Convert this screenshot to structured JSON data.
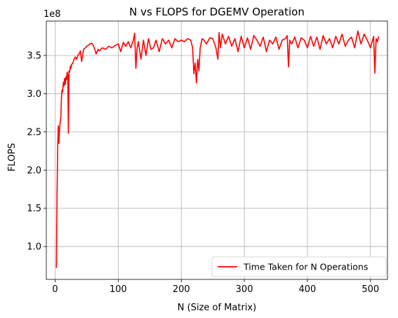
{
  "chart_data": {
    "type": "line",
    "title": "N vs FLOPS for DGEMV Operation",
    "xlabel": "N (Size of Matrix)",
    "ylabel": "FLOPS",
    "y_offset_text": "1e8",
    "xlim": [
      -14,
      527
    ],
    "ylim": [
      57000000.0,
      395000000.0
    ],
    "xticks": [
      0,
      100,
      200,
      300,
      400,
      500
    ],
    "xtick_labels": [
      "0",
      "100",
      "200",
      "300",
      "400",
      "500"
    ],
    "yticks": [
      100000000.0,
      150000000.0,
      200000000.0,
      250000000.0,
      300000000.0,
      350000000.0
    ],
    "ytick_labels": [
      "1.0",
      "1.5",
      "2.0",
      "2.5",
      "3.0",
      "3.5"
    ],
    "grid": true,
    "legend_position": "lower-right",
    "series": [
      {
        "name": "Time Taken for N Operations",
        "color": "#ff0000",
        "x": [
          2,
          3,
          4,
          5,
          6,
          7,
          8,
          9,
          10,
          11,
          12,
          13,
          14,
          15,
          16,
          17,
          18,
          19,
          20,
          21,
          22,
          23,
          24,
          25,
          26,
          28,
          30,
          32,
          34,
          36,
          38,
          40,
          42,
          45,
          48,
          50,
          52,
          55,
          58,
          60,
          62,
          65,
          68,
          70,
          75,
          80,
          85,
          90,
          95,
          100,
          104,
          108,
          112,
          116,
          120,
          124,
          126,
          128,
          130,
          132,
          136,
          140,
          144,
          148,
          152,
          156,
          160,
          165,
          170,
          175,
          180,
          185,
          190,
          195,
          200,
          205,
          210,
          215,
          218,
          220,
          222,
          224,
          226,
          228,
          230,
          233,
          236,
          240,
          245,
          250,
          255,
          258,
          260,
          262,
          265,
          270,
          275,
          280,
          285,
          290,
          295,
          300,
          305,
          310,
          315,
          320,
          325,
          330,
          335,
          340,
          345,
          350,
          355,
          360,
          365,
          368,
          370,
          372,
          375,
          380,
          385,
          390,
          395,
          400,
          405,
          410,
          415,
          420,
          425,
          430,
          435,
          440,
          445,
          450,
          455,
          460,
          465,
          470,
          475,
          480,
          485,
          490,
          495,
          500,
          505,
          507,
          509,
          511,
          513
        ],
        "y": [
          72000000.0,
          170000000.0,
          230000000.0,
          258000000.0,
          235000000.0,
          255000000.0,
          262000000.0,
          270000000.0,
          295000000.0,
          305000000.0,
          302000000.0,
          315000000.0,
          310000000.0,
          320000000.0,
          312000000.0,
          322000000.0,
          318000000.0,
          328000000.0,
          325000000.0,
          248000000.0,
          330000000.0,
          328000000.0,
          336000000.0,
          333000000.0,
          338000000.0,
          340000000.0,
          345000000.0,
          348000000.0,
          345000000.0,
          350000000.0,
          352000000.0,
          356000000.0,
          342000000.0,
          358000000.0,
          360000000.0,
          362000000.0,
          363000000.0,
          365000000.0,
          366000000.0,
          364000000.0,
          360000000.0,
          352000000.0,
          358000000.0,
          356000000.0,
          360000000.0,
          358000000.0,
          362000000.0,
          360000000.0,
          363000000.0,
          365000000.0,
          355000000.0,
          367000000.0,
          362000000.0,
          368000000.0,
          360000000.0,
          370000000.0,
          379000000.0,
          333000000.0,
          360000000.0,
          368000000.0,
          345000000.0,
          370000000.0,
          350000000.0,
          372000000.0,
          358000000.0,
          360000000.0,
          370000000.0,
          355000000.0,
          372000000.0,
          365000000.0,
          370000000.0,
          360000000.0,
          372000000.0,
          368000000.0,
          370000000.0,
          368000000.0,
          372000000.0,
          370000000.0,
          360000000.0,
          326000000.0,
          340000000.0,
          314000000.0,
          345000000.0,
          330000000.0,
          360000000.0,
          372000000.0,
          370000000.0,
          365000000.0,
          373000000.0,
          372000000.0,
          360000000.0,
          345000000.0,
          380000000.0,
          360000000.0,
          378000000.0,
          365000000.0,
          375000000.0,
          362000000.0,
          372000000.0,
          355000000.0,
          375000000.0,
          360000000.0,
          373000000.0,
          358000000.0,
          376000000.0,
          370000000.0,
          362000000.0,
          374000000.0,
          355000000.0,
          370000000.0,
          365000000.0,
          374000000.0,
          358000000.0,
          370000000.0,
          372000000.0,
          376000000.0,
          335000000.0,
          370000000.0,
          365000000.0,
          374000000.0,
          360000000.0,
          373000000.0,
          370000000.0,
          360000000.0,
          375000000.0,
          362000000.0,
          374000000.0,
          358000000.0,
          376000000.0,
          365000000.0,
          372000000.0,
          360000000.0,
          375000000.0,
          365000000.0,
          378000000.0,
          362000000.0,
          370000000.0,
          374000000.0,
          360000000.0,
          382000000.0,
          365000000.0,
          378000000.0,
          370000000.0,
          360000000.0,
          375000000.0,
          327000000.0,
          372000000.0,
          368000000.0,
          375000000.0
        ]
      }
    ]
  }
}
